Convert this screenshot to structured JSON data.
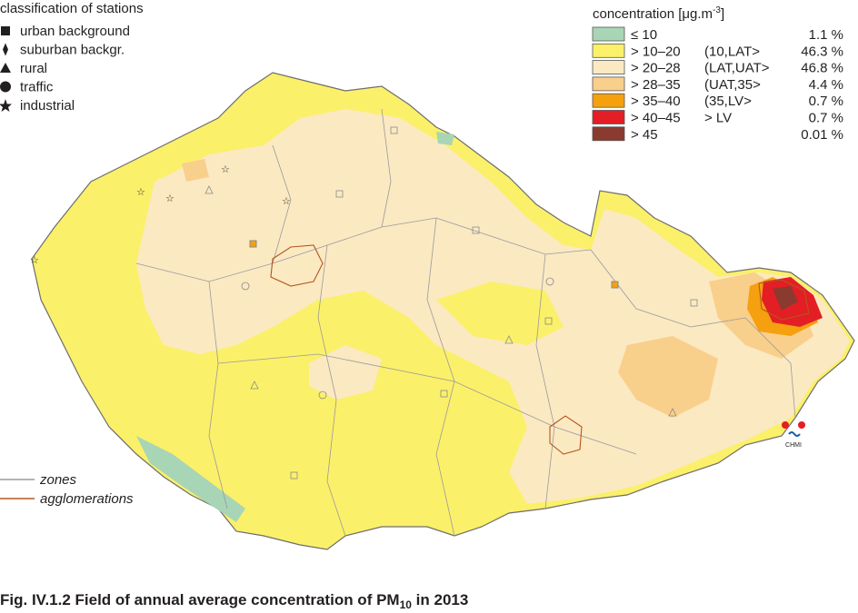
{
  "stations_legend": {
    "title": "classification of stations",
    "items": [
      "urban background",
      "suburban backgr.",
      "rural",
      "traffic",
      "industrial"
    ]
  },
  "concentration_legend": {
    "title": {
      "text": "concentration [μg.m",
      "superscript": "-3",
      "suffix": "]"
    },
    "rows": [
      {
        "range": "≤ 10",
        "share": "1.1 %",
        "color": "#a8d5b5"
      },
      {
        "range": "> 10–20",
        "class": "(10,LAT>",
        "share": "46.3 %",
        "color": "#fbf06a"
      },
      {
        "range": "> 20–28",
        "class": "(LAT,UAT>",
        "share": "46.8 %",
        "color": "#fbe9c2"
      },
      {
        "range": "> 28–35",
        "class": "(UAT,35>",
        "share": "4.4 %",
        "color": "#f9cf8c"
      },
      {
        "range": "> 35–40",
        "class": "(35,LV>",
        "share": "0.7 %",
        "color": "#f5a00f"
      },
      {
        "range": "> 40–45",
        "class": "> LV",
        "share": "0.7 %",
        "color": "#e31e24"
      },
      {
        "range": "> 45",
        "share": "0.01 %",
        "color": "#8b3a2f"
      }
    ]
  },
  "lines_legend": {
    "zones": "zones",
    "agglomerations": "agglomerations"
  },
  "logo": "CHMI",
  "caption": {
    "text": "Fig. IV.1.2  Field of annual average concentration of PM",
    "subscript": "10",
    "suffix": " in 2013"
  }
}
